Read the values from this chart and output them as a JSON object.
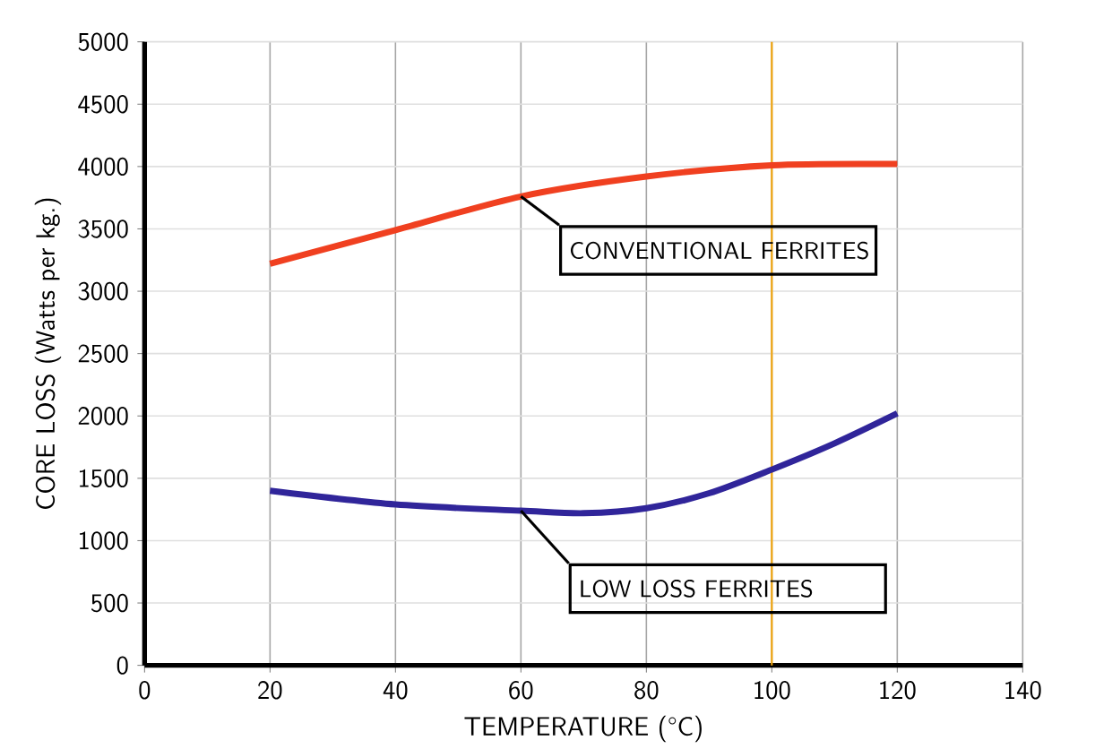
{
  "chart_data": {
    "type": "line",
    "xlabel": "TEMPERATURE (°C)",
    "ylabel": "CORE LOSS (Watts per kg.)",
    "xlim": [
      0,
      140
    ],
    "xticks": [
      0,
      20,
      40,
      60,
      80,
      100,
      120,
      140
    ],
    "ylim": [
      0,
      5000
    ],
    "yticks": [
      0,
      500,
      1000,
      1500,
      2000,
      2500,
      3000,
      3500,
      4000,
      4500,
      5000
    ],
    "grid": true,
    "legend": false,
    "marker": "none",
    "line_style": "solid",
    "ref_lines": [
      {
        "axis": "x",
        "value": 100,
        "color": "#f0a30a"
      }
    ],
    "series": [
      {
        "name": "CONVENTIONAL FERRITES",
        "color": "#f04020",
        "x": [
          20,
          40,
          60,
          80,
          100,
          120
        ],
        "values": [
          3220,
          3490,
          3760,
          3920,
          4010,
          4020
        ]
      },
      {
        "name": "LOW LOSS FERRITES",
        "color": "#30259a",
        "x": [
          20,
          40,
          60,
          70,
          80,
          90,
          100,
          110,
          120
        ],
        "values": [
          1400,
          1290,
          1240,
          1220,
          1260,
          1380,
          1570,
          1780,
          2020
        ]
      }
    ]
  }
}
